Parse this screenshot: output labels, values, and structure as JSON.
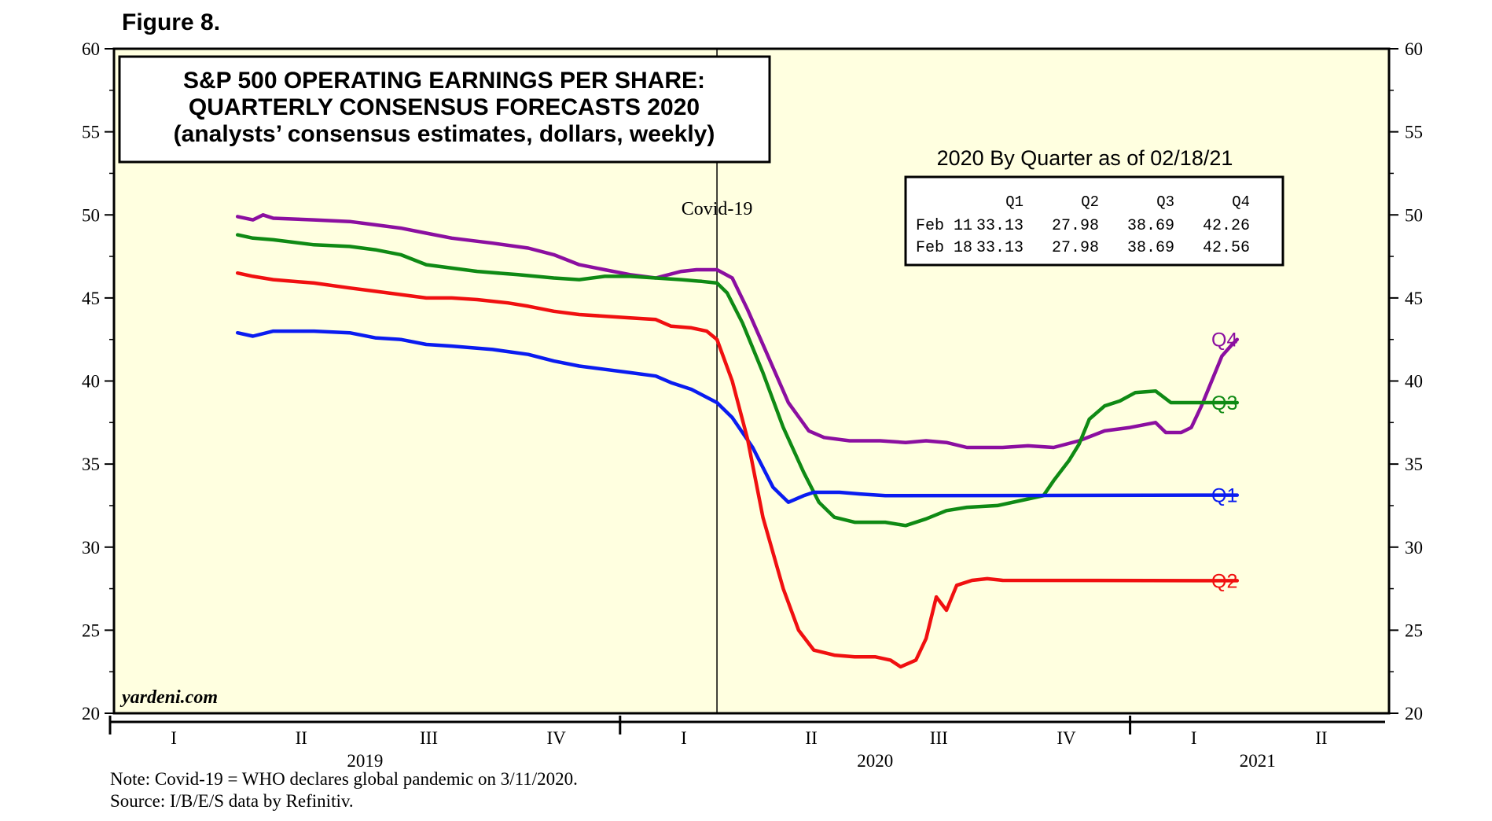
{
  "figure_label": "Figure 8.",
  "watermark": "yardeni.com",
  "notes": {
    "note": "Note: Covid-19 = WHO declares global pandemic on 3/11/2020.",
    "source": "Source: I/B/E/S data by Refinitiv."
  },
  "chart_data": {
    "type": "line",
    "title": [
      "S&P 500 OPERATING EARNINGS PER SHARE:",
      "QUARTERLY CONSENSUS FORECASTS 2020",
      "(analysts’ consensus estimates, dollars, weekly)"
    ],
    "ylim": [
      20,
      60
    ],
    "yticks": [
      20,
      25,
      30,
      35,
      40,
      45,
      50,
      55,
      60
    ],
    "xlim": [
      2019.0,
      2021.5
    ],
    "quarters": [
      {
        "label": "I",
        "x": 2019.125
      },
      {
        "label": "II",
        "x": 2019.375
      },
      {
        "label": "III",
        "x": 2019.625
      },
      {
        "label": "IV",
        "x": 2019.875
      },
      {
        "label": "I",
        "x": 2020.125
      },
      {
        "label": "II",
        "x": 2020.375
      },
      {
        "label": "III",
        "x": 2020.625
      },
      {
        "label": "IV",
        "x": 2020.875
      },
      {
        "label": "I",
        "x": 2021.125
      },
      {
        "label": "II",
        "x": 2021.375
      }
    ],
    "years": [
      {
        "label": "2019",
        "x": 2019.5
      },
      {
        "label": "2020",
        "x": 2020.5
      },
      {
        "label": "2021",
        "x": 2021.25
      }
    ],
    "year_ticks": [
      2020.0,
      2021.0
    ],
    "event_line": {
      "x": 2020.19,
      "label": "Covid-19"
    },
    "series": [
      {
        "name": "Q4",
        "color": "#8b0fa0",
        "points": [
          [
            2019.25,
            49.9
          ],
          [
            2019.28,
            49.7
          ],
          [
            2019.3,
            50.0
          ],
          [
            2019.32,
            49.8
          ],
          [
            2019.4,
            49.7
          ],
          [
            2019.47,
            49.6
          ],
          [
            2019.52,
            49.4
          ],
          [
            2019.57,
            49.2
          ],
          [
            2019.62,
            48.9
          ],
          [
            2019.67,
            48.6
          ],
          [
            2019.75,
            48.3
          ],
          [
            2019.82,
            48.0
          ],
          [
            2019.87,
            47.6
          ],
          [
            2019.92,
            47.0
          ],
          [
            2019.97,
            46.7
          ],
          [
            2020.02,
            46.4
          ],
          [
            2020.07,
            46.2
          ],
          [
            2020.12,
            46.6
          ],
          [
            2020.15,
            46.7
          ],
          [
            2020.19,
            46.7
          ],
          [
            2020.22,
            46.2
          ],
          [
            2020.25,
            44.3
          ],
          [
            2020.29,
            41.5
          ],
          [
            2020.33,
            38.7
          ],
          [
            2020.37,
            37.0
          ],
          [
            2020.4,
            36.6
          ],
          [
            2020.45,
            36.4
          ],
          [
            2020.51,
            36.4
          ],
          [
            2020.56,
            36.3
          ],
          [
            2020.6,
            36.4
          ],
          [
            2020.64,
            36.3
          ],
          [
            2020.68,
            36.0
          ],
          [
            2020.75,
            36.0
          ],
          [
            2020.8,
            36.1
          ],
          [
            2020.85,
            36.0
          ],
          [
            2020.9,
            36.4
          ],
          [
            2020.95,
            37.0
          ],
          [
            2021.0,
            37.2
          ],
          [
            2021.05,
            37.5
          ],
          [
            2021.07,
            36.9
          ],
          [
            2021.1,
            36.9
          ],
          [
            2021.12,
            37.2
          ],
          [
            2021.14,
            38.5
          ],
          [
            2021.16,
            40.0
          ],
          [
            2021.18,
            41.5
          ],
          [
            2021.2,
            42.2
          ],
          [
            2021.21,
            42.5
          ]
        ]
      },
      {
        "name": "Q3",
        "color": "#0f8a14",
        "points": [
          [
            2019.25,
            48.8
          ],
          [
            2019.28,
            48.6
          ],
          [
            2019.32,
            48.5
          ],
          [
            2019.4,
            48.2
          ],
          [
            2019.47,
            48.1
          ],
          [
            2019.52,
            47.9
          ],
          [
            2019.57,
            47.6
          ],
          [
            2019.62,
            47.0
          ],
          [
            2019.67,
            46.8
          ],
          [
            2019.72,
            46.6
          ],
          [
            2019.8,
            46.4
          ],
          [
            2019.87,
            46.2
          ],
          [
            2019.92,
            46.1
          ],
          [
            2019.97,
            46.3
          ],
          [
            2020.02,
            46.3
          ],
          [
            2020.07,
            46.2
          ],
          [
            2020.12,
            46.1
          ],
          [
            2020.16,
            46.0
          ],
          [
            2020.19,
            45.9
          ],
          [
            2020.21,
            45.3
          ],
          [
            2020.24,
            43.5
          ],
          [
            2020.28,
            40.5
          ],
          [
            2020.32,
            37.2
          ],
          [
            2020.36,
            34.5
          ],
          [
            2020.39,
            32.7
          ],
          [
            2020.42,
            31.8
          ],
          [
            2020.46,
            31.5
          ],
          [
            2020.52,
            31.5
          ],
          [
            2020.56,
            31.3
          ],
          [
            2020.6,
            31.7
          ],
          [
            2020.64,
            32.2
          ],
          [
            2020.68,
            32.4
          ],
          [
            2020.74,
            32.5
          ],
          [
            2020.8,
            32.9
          ],
          [
            2020.83,
            33.1
          ],
          [
            2020.85,
            34.0
          ],
          [
            2020.88,
            35.2
          ],
          [
            2020.9,
            36.2
          ],
          [
            2020.92,
            37.7
          ],
          [
            2020.95,
            38.5
          ],
          [
            2020.98,
            38.8
          ],
          [
            2021.01,
            39.3
          ],
          [
            2021.05,
            39.4
          ],
          [
            2021.08,
            38.7
          ],
          [
            2021.21,
            38.7
          ]
        ]
      },
      {
        "name": "Q1",
        "color": "#0a1cf0",
        "points": [
          [
            2019.25,
            42.9
          ],
          [
            2019.28,
            42.7
          ],
          [
            2019.32,
            43.0
          ],
          [
            2019.4,
            43.0
          ],
          [
            2019.47,
            42.9
          ],
          [
            2019.52,
            42.6
          ],
          [
            2019.57,
            42.5
          ],
          [
            2019.62,
            42.2
          ],
          [
            2019.67,
            42.1
          ],
          [
            2019.75,
            41.9
          ],
          [
            2019.82,
            41.6
          ],
          [
            2019.87,
            41.2
          ],
          [
            2019.92,
            40.9
          ],
          [
            2019.97,
            40.7
          ],
          [
            2020.02,
            40.5
          ],
          [
            2020.07,
            40.3
          ],
          [
            2020.1,
            39.9
          ],
          [
            2020.14,
            39.5
          ],
          [
            2020.19,
            38.7
          ],
          [
            2020.22,
            37.8
          ],
          [
            2020.26,
            36.0
          ],
          [
            2020.3,
            33.6
          ],
          [
            2020.33,
            32.7
          ],
          [
            2020.36,
            33.1
          ],
          [
            2020.38,
            33.3
          ],
          [
            2020.43,
            33.3
          ],
          [
            2020.47,
            33.2
          ],
          [
            2020.52,
            33.1
          ],
          [
            2021.21,
            33.13
          ]
        ]
      },
      {
        "name": "Q2",
        "color": "#f01010",
        "points": [
          [
            2019.25,
            46.5
          ],
          [
            2019.28,
            46.3
          ],
          [
            2019.32,
            46.1
          ],
          [
            2019.4,
            45.9
          ],
          [
            2019.47,
            45.6
          ],
          [
            2019.52,
            45.4
          ],
          [
            2019.57,
            45.2
          ],
          [
            2019.62,
            45.0
          ],
          [
            2019.67,
            45.0
          ],
          [
            2019.72,
            44.9
          ],
          [
            2019.78,
            44.7
          ],
          [
            2019.82,
            44.5
          ],
          [
            2019.87,
            44.2
          ],
          [
            2019.92,
            44.0
          ],
          [
            2019.97,
            43.9
          ],
          [
            2020.02,
            43.8
          ],
          [
            2020.07,
            43.7
          ],
          [
            2020.1,
            43.3
          ],
          [
            2020.14,
            43.2
          ],
          [
            2020.17,
            43.0
          ],
          [
            2020.19,
            42.5
          ],
          [
            2020.22,
            40.0
          ],
          [
            2020.25,
            36.5
          ],
          [
            2020.28,
            31.8
          ],
          [
            2020.32,
            27.5
          ],
          [
            2020.35,
            25.0
          ],
          [
            2020.38,
            23.8
          ],
          [
            2020.42,
            23.5
          ],
          [
            2020.46,
            23.4
          ],
          [
            2020.5,
            23.4
          ],
          [
            2020.53,
            23.2
          ],
          [
            2020.55,
            22.8
          ],
          [
            2020.58,
            23.2
          ],
          [
            2020.6,
            24.5
          ],
          [
            2020.62,
            27.0
          ],
          [
            2020.64,
            26.2
          ],
          [
            2020.66,
            27.7
          ],
          [
            2020.69,
            28.0
          ],
          [
            2020.72,
            28.1
          ],
          [
            2020.75,
            28.0
          ],
          [
            2021.21,
            27.98
          ]
        ]
      }
    ],
    "series_labels": [
      {
        "name": "Q4",
        "value": 42.5
      },
      {
        "name": "Q3",
        "value": 38.7
      },
      {
        "name": "Q1",
        "value": 33.13
      },
      {
        "name": "Q2",
        "value": 27.98
      }
    ],
    "inset_table": {
      "title": "2020 By Quarter as of 02/18/21",
      "headers": [
        "",
        "Q1",
        "Q2",
        "Q3",
        "Q4"
      ],
      "rows": [
        [
          "Feb 11",
          "33.13",
          "27.98",
          "38.69",
          "42.26"
        ],
        [
          "Feb 18",
          "33.13",
          "27.98",
          "38.69",
          "42.56"
        ]
      ]
    }
  }
}
